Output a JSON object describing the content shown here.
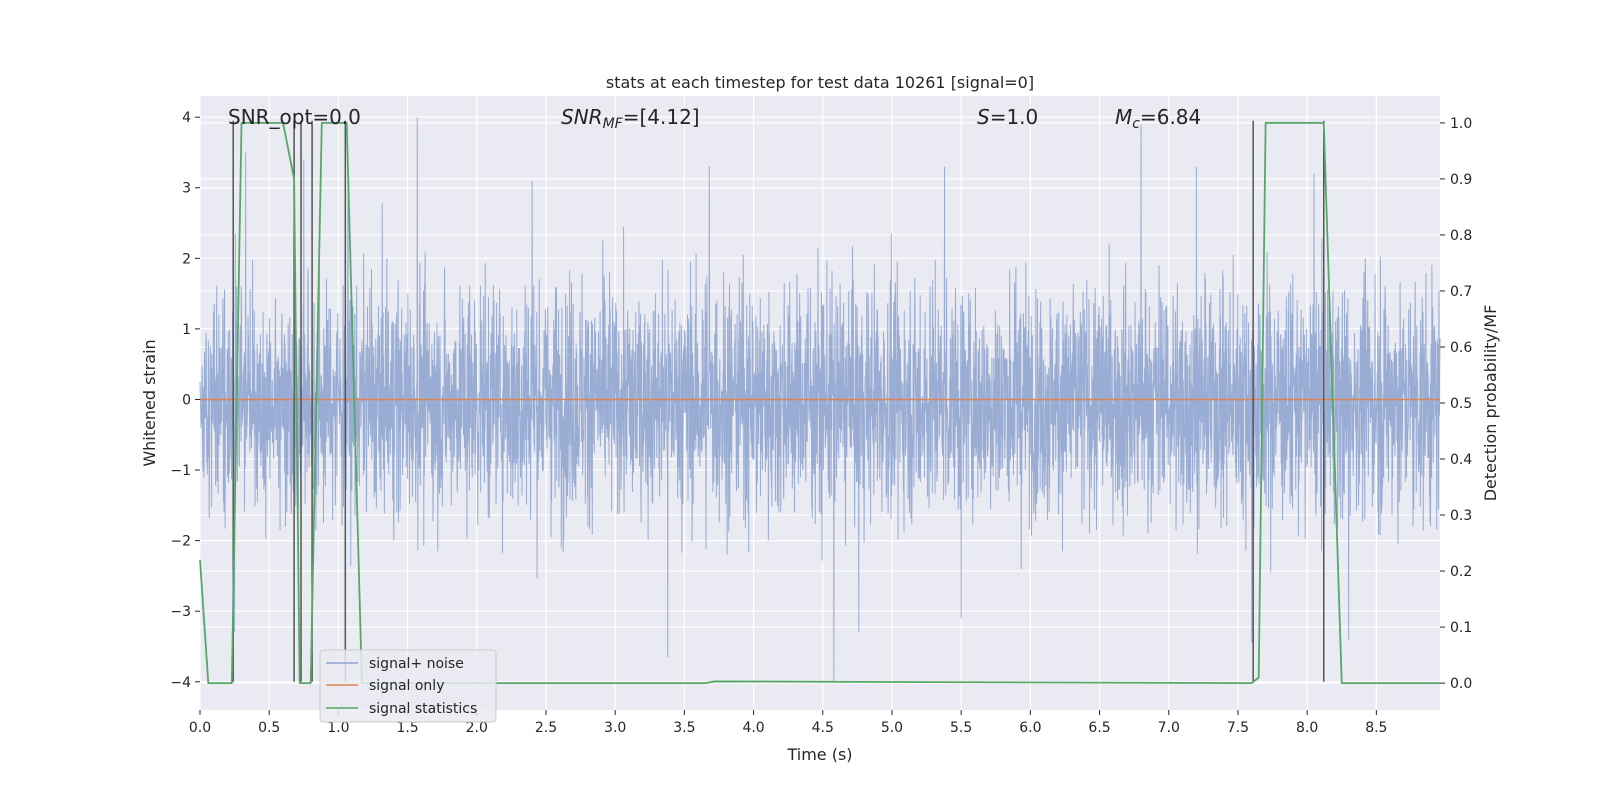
{
  "chart_data": {
    "type": "line",
    "title": "stats at each timestep for test data 10261 [signal=0]",
    "xlabel": "Time (s)",
    "ylabel_left": "Whitened strain",
    "ylabel_right": "Detection probability/MF",
    "xlim": [
      0.0,
      8.96
    ],
    "ylim_left": [
      -4.4,
      4.3
    ],
    "ylim_right": [
      -0.048,
      1.048
    ],
    "x_ticks": [
      "0.0",
      "0.5",
      "1.0",
      "1.5",
      "2.0",
      "2.5",
      "3.0",
      "3.5",
      "4.0",
      "4.5",
      "5.0",
      "5.5",
      "6.0",
      "6.5",
      "7.0",
      "7.5",
      "8.0",
      "8.5"
    ],
    "y_left_ticks": [
      "4",
      "3",
      "2",
      "1",
      "0",
      "−1",
      "−2",
      "−3",
      "−4"
    ],
    "y_right_ticks": [
      "1.0",
      "0.9",
      "0.8",
      "0.7",
      "0.6",
      "0.5",
      "0.4",
      "0.3",
      "0.2",
      "0.1",
      "0.0"
    ],
    "grid": true,
    "legend_position": "lower-left",
    "annotations": {
      "snr_opt": "SNR_opt=0.0",
      "snr_mf_sym": "SNR",
      "snr_mf_sub": "MF",
      "snr_mf_val": "=[4.12]",
      "s_sym": "S",
      "s_val": "=1.0",
      "mc_sym": "M",
      "mc_sub": "c",
      "mc_val": "=6.84"
    },
    "series": [
      {
        "name": "signal+ noise",
        "color": "#8fa5d0",
        "axis": "left",
        "note_noise_band": "dense whitened noise roughly spanning -2.5 to 2.5 with peaks near +/-3.5",
        "peaks": [
          {
            "x": 0.25,
            "y": -3.3
          },
          {
            "x": 0.33,
            "y": 3.5
          },
          {
            "x": 0.75,
            "y": 3.4
          },
          {
            "x": 1.07,
            "y": 3.0
          },
          {
            "x": 1.57,
            "y": 4.0
          },
          {
            "x": 2.4,
            "y": 3.1
          },
          {
            "x": 3.38,
            "y": -3.65
          },
          {
            "x": 3.68,
            "y": 3.3
          },
          {
            "x": 4.58,
            "y": -4.0
          },
          {
            "x": 4.76,
            "y": -3.3
          },
          {
            "x": 5.38,
            "y": 3.3
          },
          {
            "x": 5.5,
            "y": -3.1
          },
          {
            "x": 6.8,
            "y": 3.9
          },
          {
            "x": 7.2,
            "y": 3.3
          },
          {
            "x": 7.6,
            "y": -3.45
          },
          {
            "x": 8.05,
            "y": 3.2
          },
          {
            "x": 8.3,
            "y": -3.4
          }
        ]
      },
      {
        "name": "signal only",
        "color": "#dd8452",
        "axis": "left",
        "x": [
          0.0,
          8.96
        ],
        "y": [
          0.0,
          0.0
        ]
      },
      {
        "name": "signal statistics",
        "color": "#55a868",
        "axis": "right",
        "x": [
          0.0,
          0.06,
          0.23,
          0.3,
          0.6,
          0.68,
          0.72,
          0.76,
          0.8,
          0.88,
          1.06,
          1.17,
          1.3,
          3.65,
          3.72,
          7.6,
          7.65,
          7.7,
          8.12,
          8.25,
          8.96
        ],
        "y": [
          0.22,
          0.0,
          0.0,
          1.0,
          1.0,
          0.9,
          0.0,
          0.0,
          0.0,
          1.0,
          1.0,
          0.0,
          0.0,
          0.0,
          0.003,
          0.0,
          0.01,
          1.0,
          1.0,
          0.0,
          0.0
        ]
      }
    ],
    "vertical_markers": {
      "color": "#555555",
      "axis": "left",
      "x": [
        0.24,
        0.68,
        0.73,
        0.81,
        1.05,
        7.61,
        8.12
      ],
      "y_top": 3.95,
      "y_bottom": -4.0
    }
  }
}
